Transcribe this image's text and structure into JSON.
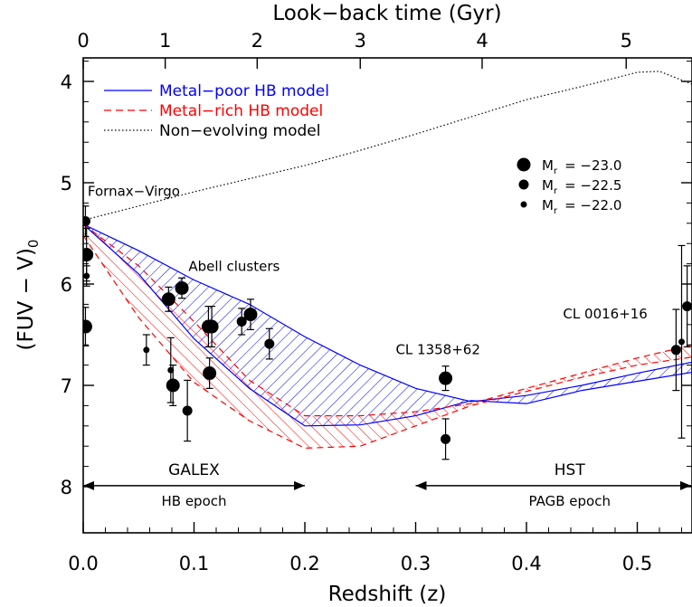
{
  "chart_data": {
    "type": "scatter",
    "xlabel": "Redshift (z)",
    "ylabel": "(FUV − V)",
    "ylabel_subscript": "0",
    "top_xlabel": "Look−back time (Gyr)",
    "xlim": [
      0.0,
      0.55
    ],
    "ylim": [
      8.5,
      3.8
    ],
    "y_inverted": true,
    "bottom_ticks": [
      {
        "value": 0.0,
        "label": "0.0"
      },
      {
        "value": 0.1,
        "label": "0.1"
      },
      {
        "value": 0.2,
        "label": "0.2"
      },
      {
        "value": 0.3,
        "label": "0.3"
      },
      {
        "value": 0.4,
        "label": "0.4"
      },
      {
        "value": 0.5,
        "label": "0.5"
      }
    ],
    "left_ticks": [
      {
        "value": 4,
        "label": "4"
      },
      {
        "value": 5,
        "label": "5"
      },
      {
        "value": 6,
        "label": "6"
      },
      {
        "value": 7,
        "label": "7"
      },
      {
        "value": 8,
        "label": "8"
      }
    ],
    "top_ticks": [
      {
        "z": 0.0,
        "label": "0"
      },
      {
        "z": 0.074,
        "label": "1"
      },
      {
        "z": 0.157,
        "label": "2"
      },
      {
        "z": 0.25,
        "label": "3"
      },
      {
        "z": 0.36,
        "label": "4"
      },
      {
        "z": 0.49,
        "label": "5"
      }
    ],
    "legend": [
      {
        "label": "Metal−poor HB model",
        "style": "solid",
        "color": "#0000ff"
      },
      {
        "label": "Metal−rich HB model",
        "style": "dashed",
        "color": "#ff0000"
      },
      {
        "label": "Non−evolving model",
        "style": "dotted",
        "color": "#000000"
      }
    ],
    "size_legend": [
      {
        "text": "M",
        "sub": "r",
        "value": "= −23.0",
        "size": "large"
      },
      {
        "text": "M",
        "sub": "r",
        "value": "= −22.5",
        "size": "medium"
      },
      {
        "text": "M",
        "sub": "r",
        "value": "= −22.0",
        "size": "small"
      }
    ],
    "annotations": [
      {
        "text": "Fornax−Virgo",
        "z": 0.004,
        "y": 5.13
      },
      {
        "text": "Abell clusters",
        "z": 0.095,
        "y": 5.87
      },
      {
        "text": "CL 1358+62",
        "z": 0.282,
        "y": 6.69
      },
      {
        "text": "CL 0016+16",
        "z": 0.433,
        "y": 6.34
      }
    ],
    "epoch_arrows": [
      {
        "label_top": "GALEX",
        "label_bottom": "HB epoch",
        "z_start": 0.0,
        "z_end": 0.2,
        "y": 7.99
      },
      {
        "label_top": "HST",
        "label_bottom": "PAGB epoch",
        "z_start": 0.3,
        "z_end": 0.55,
        "y": 7.99
      }
    ],
    "series": [
      {
        "name": "Metal−poor HB model",
        "kind": "band",
        "color": "#0000ff",
        "upper": [
          [
            0.0,
            5.41
          ],
          [
            0.05,
            5.67
          ],
          [
            0.1,
            5.96
          ],
          [
            0.15,
            6.2
          ],
          [
            0.2,
            6.52
          ],
          [
            0.25,
            6.8
          ],
          [
            0.3,
            7.03
          ],
          [
            0.35,
            7.16
          ],
          [
            0.4,
            7.1
          ],
          [
            0.45,
            7.0
          ],
          [
            0.5,
            6.88
          ],
          [
            0.55,
            6.77
          ]
        ],
        "lower": [
          [
            0.0,
            5.41
          ],
          [
            0.05,
            5.9
          ],
          [
            0.1,
            6.54
          ],
          [
            0.15,
            7.03
          ],
          [
            0.2,
            7.4
          ],
          [
            0.25,
            7.39
          ],
          [
            0.3,
            7.3
          ],
          [
            0.35,
            7.15
          ],
          [
            0.4,
            7.18
          ],
          [
            0.45,
            7.05
          ],
          [
            0.5,
            6.96
          ],
          [
            0.55,
            6.87
          ]
        ]
      },
      {
        "name": "Metal−rich HB model",
        "kind": "band",
        "color": "#ff0000",
        "upper": [
          [
            0.0,
            5.41
          ],
          [
            0.05,
            5.82
          ],
          [
            0.1,
            6.37
          ],
          [
            0.15,
            6.95
          ],
          [
            0.2,
            7.3
          ],
          [
            0.25,
            7.3
          ],
          [
            0.3,
            7.26
          ],
          [
            0.35,
            7.18
          ],
          [
            0.4,
            7.03
          ],
          [
            0.45,
            6.88
          ],
          [
            0.5,
            6.73
          ],
          [
            0.55,
            6.6
          ]
        ],
        "lower": [
          [
            0.0,
            5.52
          ],
          [
            0.05,
            6.33
          ],
          [
            0.1,
            6.97
          ],
          [
            0.15,
            7.35
          ],
          [
            0.2,
            7.62
          ],
          [
            0.25,
            7.6
          ],
          [
            0.3,
            7.4
          ],
          [
            0.35,
            7.2
          ],
          [
            0.4,
            7.06
          ],
          [
            0.45,
            6.92
          ],
          [
            0.5,
            6.8
          ],
          [
            0.55,
            6.72
          ]
        ]
      },
      {
        "name": "Non−evolving model",
        "kind": "line",
        "color": "#000000",
        "points": [
          [
            0.0,
            5.37
          ],
          [
            0.05,
            5.23
          ],
          [
            0.1,
            5.09
          ],
          [
            0.15,
            4.96
          ],
          [
            0.2,
            4.83
          ],
          [
            0.25,
            4.68
          ],
          [
            0.3,
            4.52
          ],
          [
            0.35,
            4.35
          ],
          [
            0.4,
            4.18
          ],
          [
            0.45,
            4.05
          ],
          [
            0.5,
            3.91
          ],
          [
            0.52,
            3.9
          ],
          [
            0.55,
            4.03
          ]
        ]
      },
      {
        "name": "Data points",
        "kind": "points",
        "color": "#000000",
        "points": [
          {
            "z": 0.002,
            "y": 5.38,
            "err": 0.15,
            "size": "medium"
          },
          {
            "z": 0.003,
            "y": 5.71,
            "err": 0.26,
            "size": "large"
          },
          {
            "z": 0.003,
            "y": 5.92,
            "err": 0.1,
            "size": "small"
          },
          {
            "z": 0.002,
            "y": 6.42,
            "err": 0.19,
            "size": "large"
          },
          {
            "z": 0.057,
            "y": 6.65,
            "err": 0.15,
            "size": "small"
          },
          {
            "z": 0.077,
            "y": 6.15,
            "err": 0.12,
            "size": "large"
          },
          {
            "z": 0.079,
            "y": 6.85,
            "err": 0.32,
            "size": "small"
          },
          {
            "z": 0.081,
            "y": 7.0,
            "err": 0.2,
            "size": "large"
          },
          {
            "z": 0.089,
            "y": 6.04,
            "err": 0.1,
            "size": "large"
          },
          {
            "z": 0.094,
            "y": 7.25,
            "err": 0.3,
            "size": "medium"
          },
          {
            "z": 0.113,
            "y": 6.42,
            "err": 0.2,
            "size": "large"
          },
          {
            "z": 0.116,
            "y": 6.42,
            "err": 0.2,
            "size": "large"
          },
          {
            "z": 0.114,
            "y": 6.88,
            "err": 0.15,
            "size": "large"
          },
          {
            "z": 0.143,
            "y": 6.37,
            "err": 0.13,
            "size": "medium"
          },
          {
            "z": 0.151,
            "y": 6.3,
            "err": 0.15,
            "size": "large"
          },
          {
            "z": 0.168,
            "y": 6.59,
            "err": 0.15,
            "size": "medium"
          },
          {
            "z": 0.327,
            "y": 6.93,
            "err": 0.12,
            "size": "large"
          },
          {
            "z": 0.327,
            "y": 7.53,
            "err": 0.2,
            "size": "medium"
          },
          {
            "z": 0.535,
            "y": 6.65,
            "err": 0.4,
            "size": "medium"
          },
          {
            "z": 0.54,
            "y": 6.57,
            "err": 0.95,
            "size": "small"
          },
          {
            "z": 0.545,
            "y": 6.22,
            "err": 0.4,
            "size": "medium"
          }
        ]
      }
    ]
  }
}
